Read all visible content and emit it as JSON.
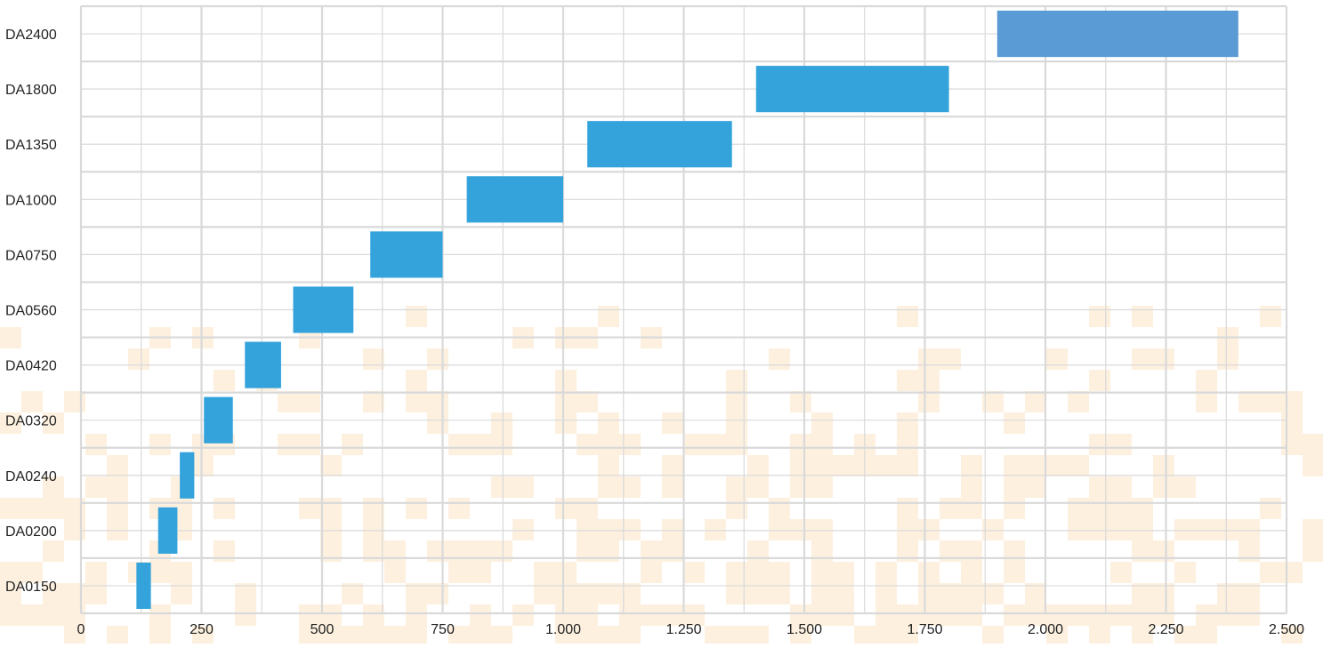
{
  "chart_data": {
    "type": "bar",
    "orientation": "horizontal-range",
    "categories": [
      "DA2400",
      "DA1800",
      "DA1350",
      "DA1000",
      "DA0750",
      "DA0560",
      "DA0420",
      "DA0320",
      "DA0240",
      "DA0200",
      "DA0150"
    ],
    "ranges": [
      [
        1900,
        2400
      ],
      [
        1400,
        1800
      ],
      [
        1050,
        1350
      ],
      [
        800,
        1000
      ],
      [
        600,
        750
      ],
      [
        440,
        565
      ],
      [
        340,
        415
      ],
      [
        255,
        315
      ],
      [
        205,
        235
      ],
      [
        160,
        200
      ],
      [
        115,
        145
      ]
    ],
    "bar_colors": [
      "#5b9bd5",
      "#34a3dc",
      "#34a3dc",
      "#34a3dc",
      "#34a3dc",
      "#34a3dc",
      "#34a3dc",
      "#34a3dc",
      "#34a3dc",
      "#34a3dc",
      "#34a3dc"
    ],
    "x_ticks": [
      0,
      250,
      500,
      750,
      1000,
      1250,
      1500,
      1750,
      2000,
      2250,
      2500
    ],
    "x_tick_labels": [
      "0",
      "250",
      "500",
      "750",
      "1.000",
      "1.250",
      "1.500",
      "1.750",
      "2.000",
      "2.250",
      "2.500"
    ],
    "xlim": [
      0,
      2500
    ],
    "title": "",
    "xlabel": "",
    "ylabel": "",
    "grid": true,
    "legend": "none",
    "colors": {
      "grid": "#d9d9d9",
      "background_pattern": "#fdf0df"
    }
  }
}
